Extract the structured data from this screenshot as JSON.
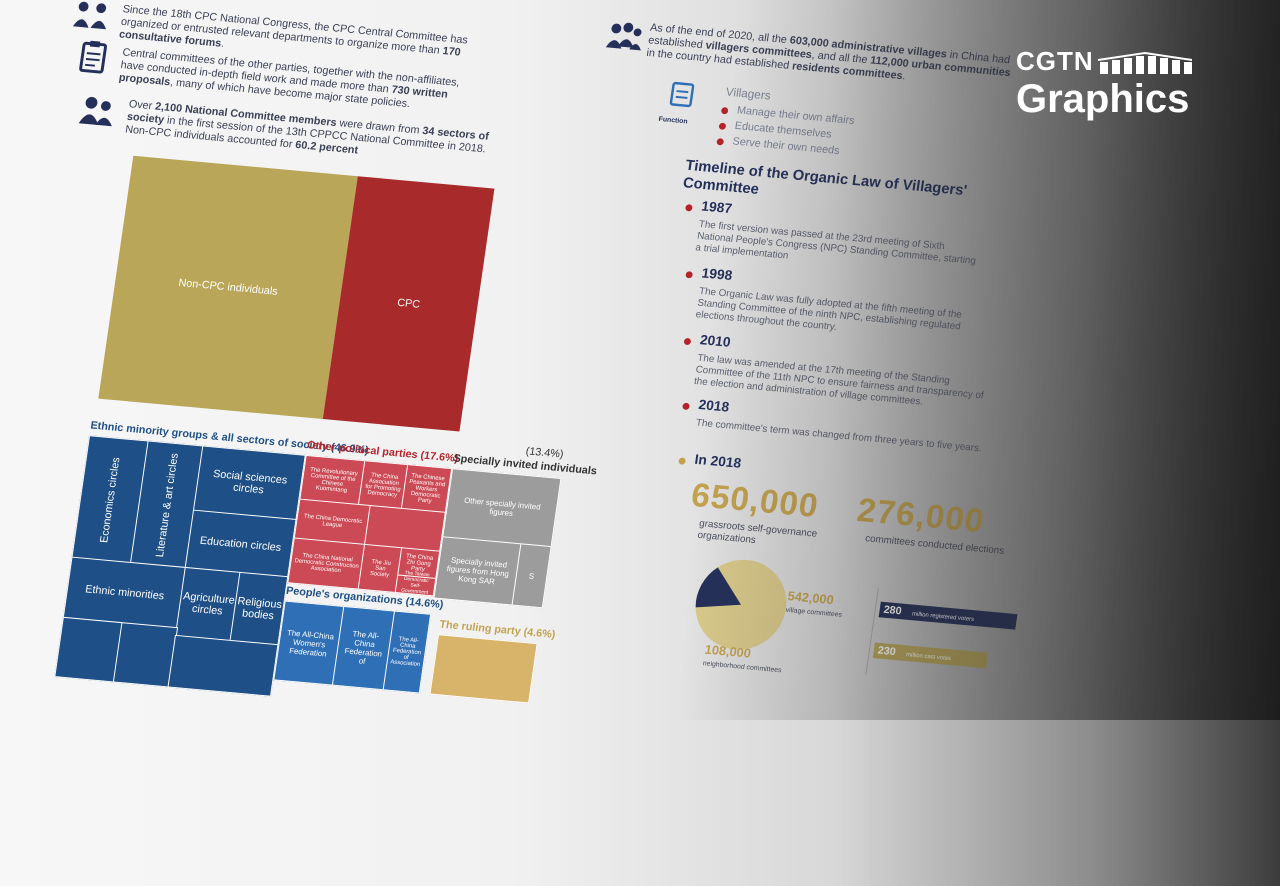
{
  "intro": {
    "p1_a": "Since the 18th CPC National Congress, the CPC Central Committee has organized or entrusted relevant departments to organize more than ",
    "p1_b": "170 consultative forums",
    "p1_c": ".",
    "p2_a": "Central committees of the other parties, together with the non-affiliates, have conducted in-depth field work and made more than ",
    "p2_b": "730 written proposals",
    "p2_c": ", many of which have become major state policies.",
    "p3_a": "Over ",
    "p3_b": "2,100 National Committee members",
    "p3_c": " were drawn from ",
    "p3_d": "34 sectors of society",
    "p3_e": " in the first session of the 13th CPPCC National Committee in 2018. Non-CPC individuals accounted for ",
    "p3_f": "60.2 percent"
  },
  "villages": {
    "p_a": "As of the end of 2020, all the ",
    "p_b": "603,000 administrative villages",
    "p_c": " in China had established ",
    "p_d": "villagers committees",
    "p_e": ", and all the ",
    "p_f": "112,000 urban communities",
    "p_g": " in the country had established ",
    "p_h": "residents committees",
    "p_i": ".",
    "function_label": "Function",
    "villagers_label": "Villagers",
    "functions": [
      "Manage their own affairs",
      "Educate themselves",
      "Serve their own needs"
    ]
  },
  "share_chart": {
    "non_cpc_label": "Non-CPC individuals",
    "cpc_label": "CPC"
  },
  "treemap": {
    "ethnic_header": "Ethnic minority groups & all sectors of society (46.9%)",
    "other_parties_header": "Other political parties (17.6%)",
    "specially_header": "Specially invited individuals",
    "specially_pct": "(13.4%)",
    "peoples_header": "People's organizations (14.6%)",
    "ruling_header": "The ruling party (4.6%)",
    "ethnic_cells": [
      "Economics circles",
      "Literature & art circles",
      "Social sciences circles",
      "Education circles",
      "Ethnic minorities",
      "Agriculture circles",
      "Religious bodies"
    ],
    "party_cells": [
      "The Revolutionary Committee of the Chinese Kuomintang",
      "The China Association for Promoting Democracy",
      "The Chinese Peasants and Workers Democratic Party",
      "The China Democratic League",
      "The China National Democratic Construction Association",
      "The Jiu San Society",
      "The China Zhi Gong Party",
      "The Taiwan Democratic Self-Government League"
    ],
    "specially_cells": [
      "Other specially invited figures",
      "Specially invited figures from Hong Kong SAR"
    ],
    "specially_small": "S",
    "peoples_cells": [
      "The All-China Women's Federation",
      "The All-China Federation of",
      "The All-China Federation of Association"
    ]
  },
  "timeline": {
    "title": "Timeline of the Organic Law of Villagers' Committee",
    "events": [
      {
        "year": "1987",
        "text": "The first version was passed at the 23rd meeting of Sixth National People's Congress (NPC) Standing Committee, starting a trial implementation"
      },
      {
        "year": "1998",
        "text": "The Organic Law was fully adopted at the fifth meeting of the Standing Committee of the ninth NPC, establishing regulated elections throughout the country."
      },
      {
        "year": "2010",
        "text": "The law was amended at the 17th meeting of the Standing Committee of the 11th NPC to ensure fairness and transparency of the election and administration of village committees."
      },
      {
        "year": "2018",
        "text": "The committee's term was changed from three years to five years."
      }
    ]
  },
  "in2018": {
    "label": "In 2018",
    "stat1_value": "650,000",
    "stat1_caption": "grassroots self-governance organizations",
    "stat2_value": "276,000",
    "stat2_caption": "committees conducted elections",
    "pie_value1": "542,000",
    "pie_caption1": "village committees",
    "pie_value2": "108,000",
    "pie_caption2": "neighborhood committees",
    "pie_fraction_dark": 0.166,
    "bar1_value": "280",
    "bar1_label": "million registered voters",
    "bar2_value": "230",
    "bar2_label": "million cast votes"
  },
  "logo": {
    "line1": "CGTN",
    "line2": "Graphics"
  },
  "colors": {
    "gold": "#b9a659",
    "red": "#a92a2a",
    "navy": "#1e4f86"
  }
}
